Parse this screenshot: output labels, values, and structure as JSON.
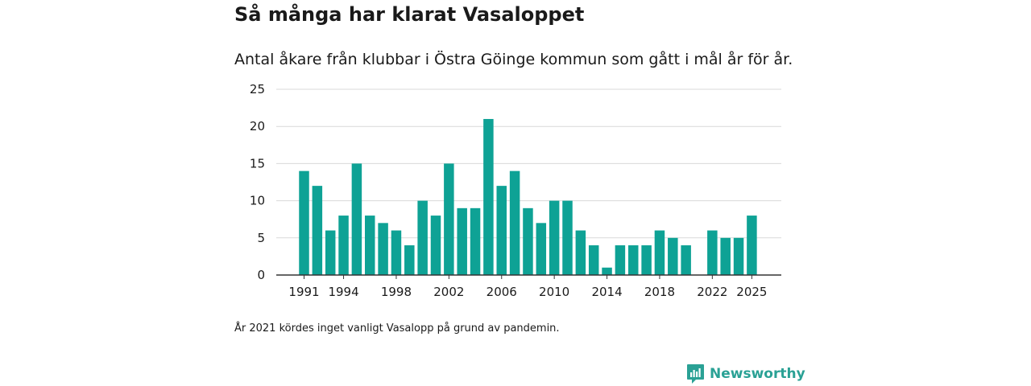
{
  "header": {
    "title": "Så många har klarat Vasaloppet",
    "subtitle": "Antal åkare från klubbar i Östra Göinge kommun som gått i mål år för år."
  },
  "footnote": "År 2021 kördes inget vanligt Vasalopp på grund av pandemin.",
  "brand": {
    "name": "Newsworthy",
    "icon": "newsworthy-logo-icon",
    "color": "#2aa195"
  },
  "chart_data": {
    "type": "bar",
    "title": "Så många har klarat Vasaloppet",
    "xlabel": "",
    "ylabel": "",
    "ylim": [
      0,
      25
    ],
    "yticks": [
      0,
      5,
      10,
      15,
      20,
      25
    ],
    "xticks": [
      "1991",
      "1994",
      "1998",
      "2002",
      "2006",
      "2010",
      "2014",
      "2018",
      "2022",
      "2025"
    ],
    "bar_color": "#0ea295",
    "grid": true,
    "categories": [
      "1991",
      "1992",
      "1993",
      "1994",
      "1995",
      "1996",
      "1997",
      "1998",
      "1999",
      "2000",
      "2001",
      "2002",
      "2003",
      "2004",
      "2005",
      "2006",
      "2007",
      "2008",
      "2009",
      "2010",
      "2011",
      "2012",
      "2013",
      "2014",
      "2015",
      "2016",
      "2017",
      "2018",
      "2019",
      "2020",
      "2021",
      "2022",
      "2023",
      "2024",
      "2025"
    ],
    "values": [
      14,
      12,
      6,
      8,
      15,
      8,
      7,
      6,
      4,
      10,
      8,
      15,
      9,
      9,
      21,
      12,
      14,
      9,
      7,
      10,
      10,
      6,
      4,
      1,
      4,
      4,
      4,
      6,
      5,
      4,
      null,
      6,
      5,
      5,
      8
    ]
  }
}
